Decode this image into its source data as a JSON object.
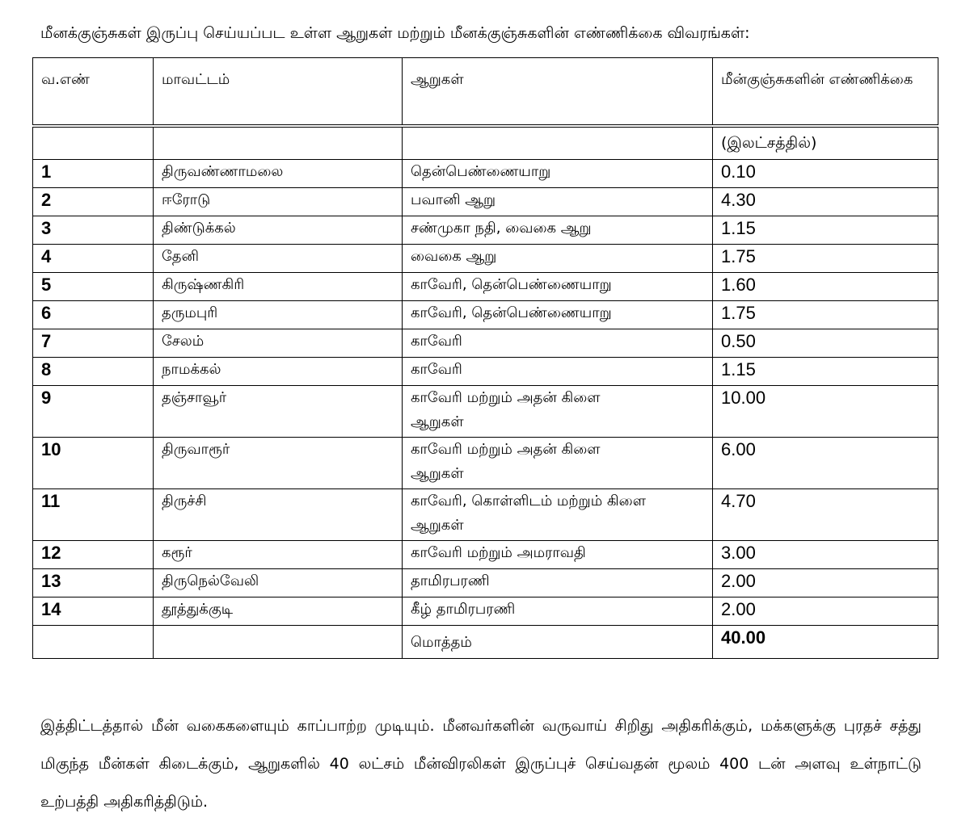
{
  "title": "மீனக்குஞ்சுகள் இருப்பு செய்யப்பட உள்ள ஆறுகள் மற்றும் மீனக்குஞ்சுகளின் எண்ணிக்கை விவரங்கள்:",
  "headers": [
    "வ.எண்",
    "மாவட்டம்",
    "ஆறுகள்",
    "மீன்குஞ்சுகளின் எண்ணிக்கை"
  ],
  "unit": "(இலட்சத்தில்)",
  "rows": [
    {
      "sn": "1",
      "district": "திருவண்ணாமலை",
      "rivers": "தென்பெண்ணையாறு",
      "count": "0.10"
    },
    {
      "sn": "2",
      "district": "ஈரோடு",
      "rivers": "பவானி ஆறு",
      "count": "4.30"
    },
    {
      "sn": "3",
      "district": "திண்டுக்கல்",
      "rivers": "சண்முகா நதி, வைகை ஆறு",
      "count": "1.15"
    },
    {
      "sn": "4",
      "district": "தேனி",
      "rivers": "வைகை ஆறு",
      "count": "1.75"
    },
    {
      "sn": "5",
      "district": "கிருஷ்ணகிரி",
      "rivers": "காவேரி, தென்பெண்ணையாறு",
      "count": "1.60"
    },
    {
      "sn": "6",
      "district": "தருமபுரி",
      "rivers": "காவேரி, தென்பெண்ணையாறு",
      "count": "1.75"
    },
    {
      "sn": "7",
      "district": "சேலம்",
      "rivers": "காவேரி",
      "count": "0.50"
    },
    {
      "sn": "8",
      "district": "நாமக்கல்",
      "rivers": "காவேரி",
      "count": "1.15"
    },
    {
      "sn": "9",
      "district": "தஞ்சாவூர்",
      "rivers": "காவேரி மற்றும் அதன் கிளை ஆறுகள்",
      "count": "10.00"
    },
    {
      "sn": "10",
      "district": "திருவாரூர்",
      "rivers": "காவேரி மற்றும் அதன் கிளை ஆறுகள்",
      "count": "6.00"
    },
    {
      "sn": "11",
      "district": "திருச்சி",
      "rivers": "காவேரி, கொள்ளிடம் மற்றும் கிளை ஆறுகள்",
      "count": "4.70"
    },
    {
      "sn": "12",
      "district": "கரூர்",
      "rivers": "காவேரி மற்றும் அமராவதி",
      "count": "3.00"
    },
    {
      "sn": "13",
      "district": "திருநெல்வேலி",
      "rivers": "தாமிரபரணி",
      "count": "2.00"
    },
    {
      "sn": "14",
      "district": "தூத்துக்குடி",
      "rivers": "கீழ் தாமிரபரணி",
      "count": "2.00"
    }
  ],
  "total_label": "மொத்தம்",
  "total": "40.00",
  "paragraph": "இத்திட்டத்தால் மீன் வகைகளையும் காப்பாற்ற முடியும். மீனவர்களின் வருவாய் சிறிது அதிகரிக்கும், மக்களுக்கு புரதச் சத்து மிகுந்த மீன்கள் கிடைக்கும், ஆறுகளில் 40 லட்சம் மீன்விரலிகள் இருப்புச் செய்வதன் மூலம் 400 டன் அளவு உள்நாட்டு உற்பத்தி அதிகரித்திடும்."
}
